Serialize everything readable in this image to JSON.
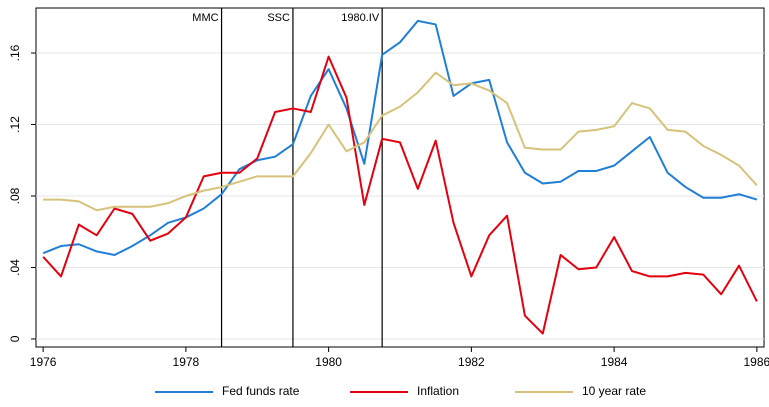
{
  "chart_data": {
    "type": "line",
    "x": [
      1976,
      1976.25,
      1976.5,
      1976.75,
      1977,
      1977.25,
      1977.5,
      1977.75,
      1978,
      1978.25,
      1978.5,
      1978.75,
      1979,
      1979.25,
      1979.5,
      1979.75,
      1980,
      1980.25,
      1980.5,
      1980.75,
      1981,
      1981.25,
      1981.5,
      1981.75,
      1982,
      1982.25,
      1982.5,
      1982.75,
      1983,
      1983.25,
      1983.5,
      1983.75,
      1984,
      1984.25,
      1984.5,
      1984.75,
      1985,
      1985.25,
      1985.5,
      1985.75,
      1986
    ],
    "series": [
      {
        "name": "Fed funds rate",
        "color": "#1f7fd6",
        "values": [
          0.048,
          0.052,
          0.053,
          0.049,
          0.047,
          0.052,
          0.058,
          0.065,
          0.068,
          0.073,
          0.081,
          0.095,
          0.1,
          0.102,
          0.109,
          0.136,
          0.151,
          0.129,
          0.098,
          0.159,
          0.166,
          0.178,
          0.176,
          0.136,
          0.143,
          0.145,
          0.11,
          0.093,
          0.087,
          0.088,
          0.094,
          0.094,
          0.097,
          0.105,
          0.113,
          0.093,
          0.085,
          0.079,
          0.079,
          0.081,
          0.078
        ]
      },
      {
        "name": "Inflation",
        "color": "#e3000f",
        "values": [
          0.046,
          0.035,
          0.064,
          0.058,
          0.073,
          0.07,
          0.055,
          0.059,
          0.068,
          0.091,
          0.093,
          0.093,
          0.101,
          0.127,
          0.129,
          0.127,
          0.158,
          0.135,
          0.075,
          0.112,
          0.11,
          0.084,
          0.111,
          0.065,
          0.035,
          0.058,
          0.069,
          0.013,
          0.003,
          0.047,
          0.039,
          0.04,
          0.057,
          0.038,
          0.035,
          0.035,
          0.037,
          0.036,
          0.025,
          0.041,
          0.021
        ]
      },
      {
        "name": "10 year rate",
        "color": "#d6c27a",
        "values": [
          0.078,
          0.078,
          0.077,
          0.072,
          0.074,
          0.074,
          0.074,
          0.076,
          0.08,
          0.083,
          0.085,
          0.088,
          0.091,
          0.091,
          0.091,
          0.104,
          0.12,
          0.105,
          0.11,
          0.125,
          0.13,
          0.138,
          0.149,
          0.142,
          0.143,
          0.139,
          0.132,
          0.107,
          0.106,
          0.106,
          0.116,
          0.117,
          0.119,
          0.132,
          0.129,
          0.117,
          0.116,
          0.108,
          0.103,
          0.097,
          0.086
        ]
      }
    ],
    "annotations": [
      {
        "label": "MMC",
        "x": 1978.5
      },
      {
        "label": "SSC",
        "x": 1979.5
      },
      {
        "label": "1980.IV",
        "x": 1980.75
      }
    ],
    "xlim": [
      1975.9,
      1986.1
    ],
    "xticks": [
      1976,
      1978,
      1980,
      1982,
      1984,
      1986
    ],
    "ylim": [
      -0.0045,
      0.1852
    ],
    "yticks": [
      0,
      {
        "value": 0.04,
        "label": ".04"
      },
      {
        "value": 0.08,
        "label": ".08"
      },
      {
        "value": 0.12,
        "label": ".12"
      },
      {
        "value": 0.16,
        "label": ".16"
      }
    ],
    "grid": true,
    "legend": "bottom"
  }
}
